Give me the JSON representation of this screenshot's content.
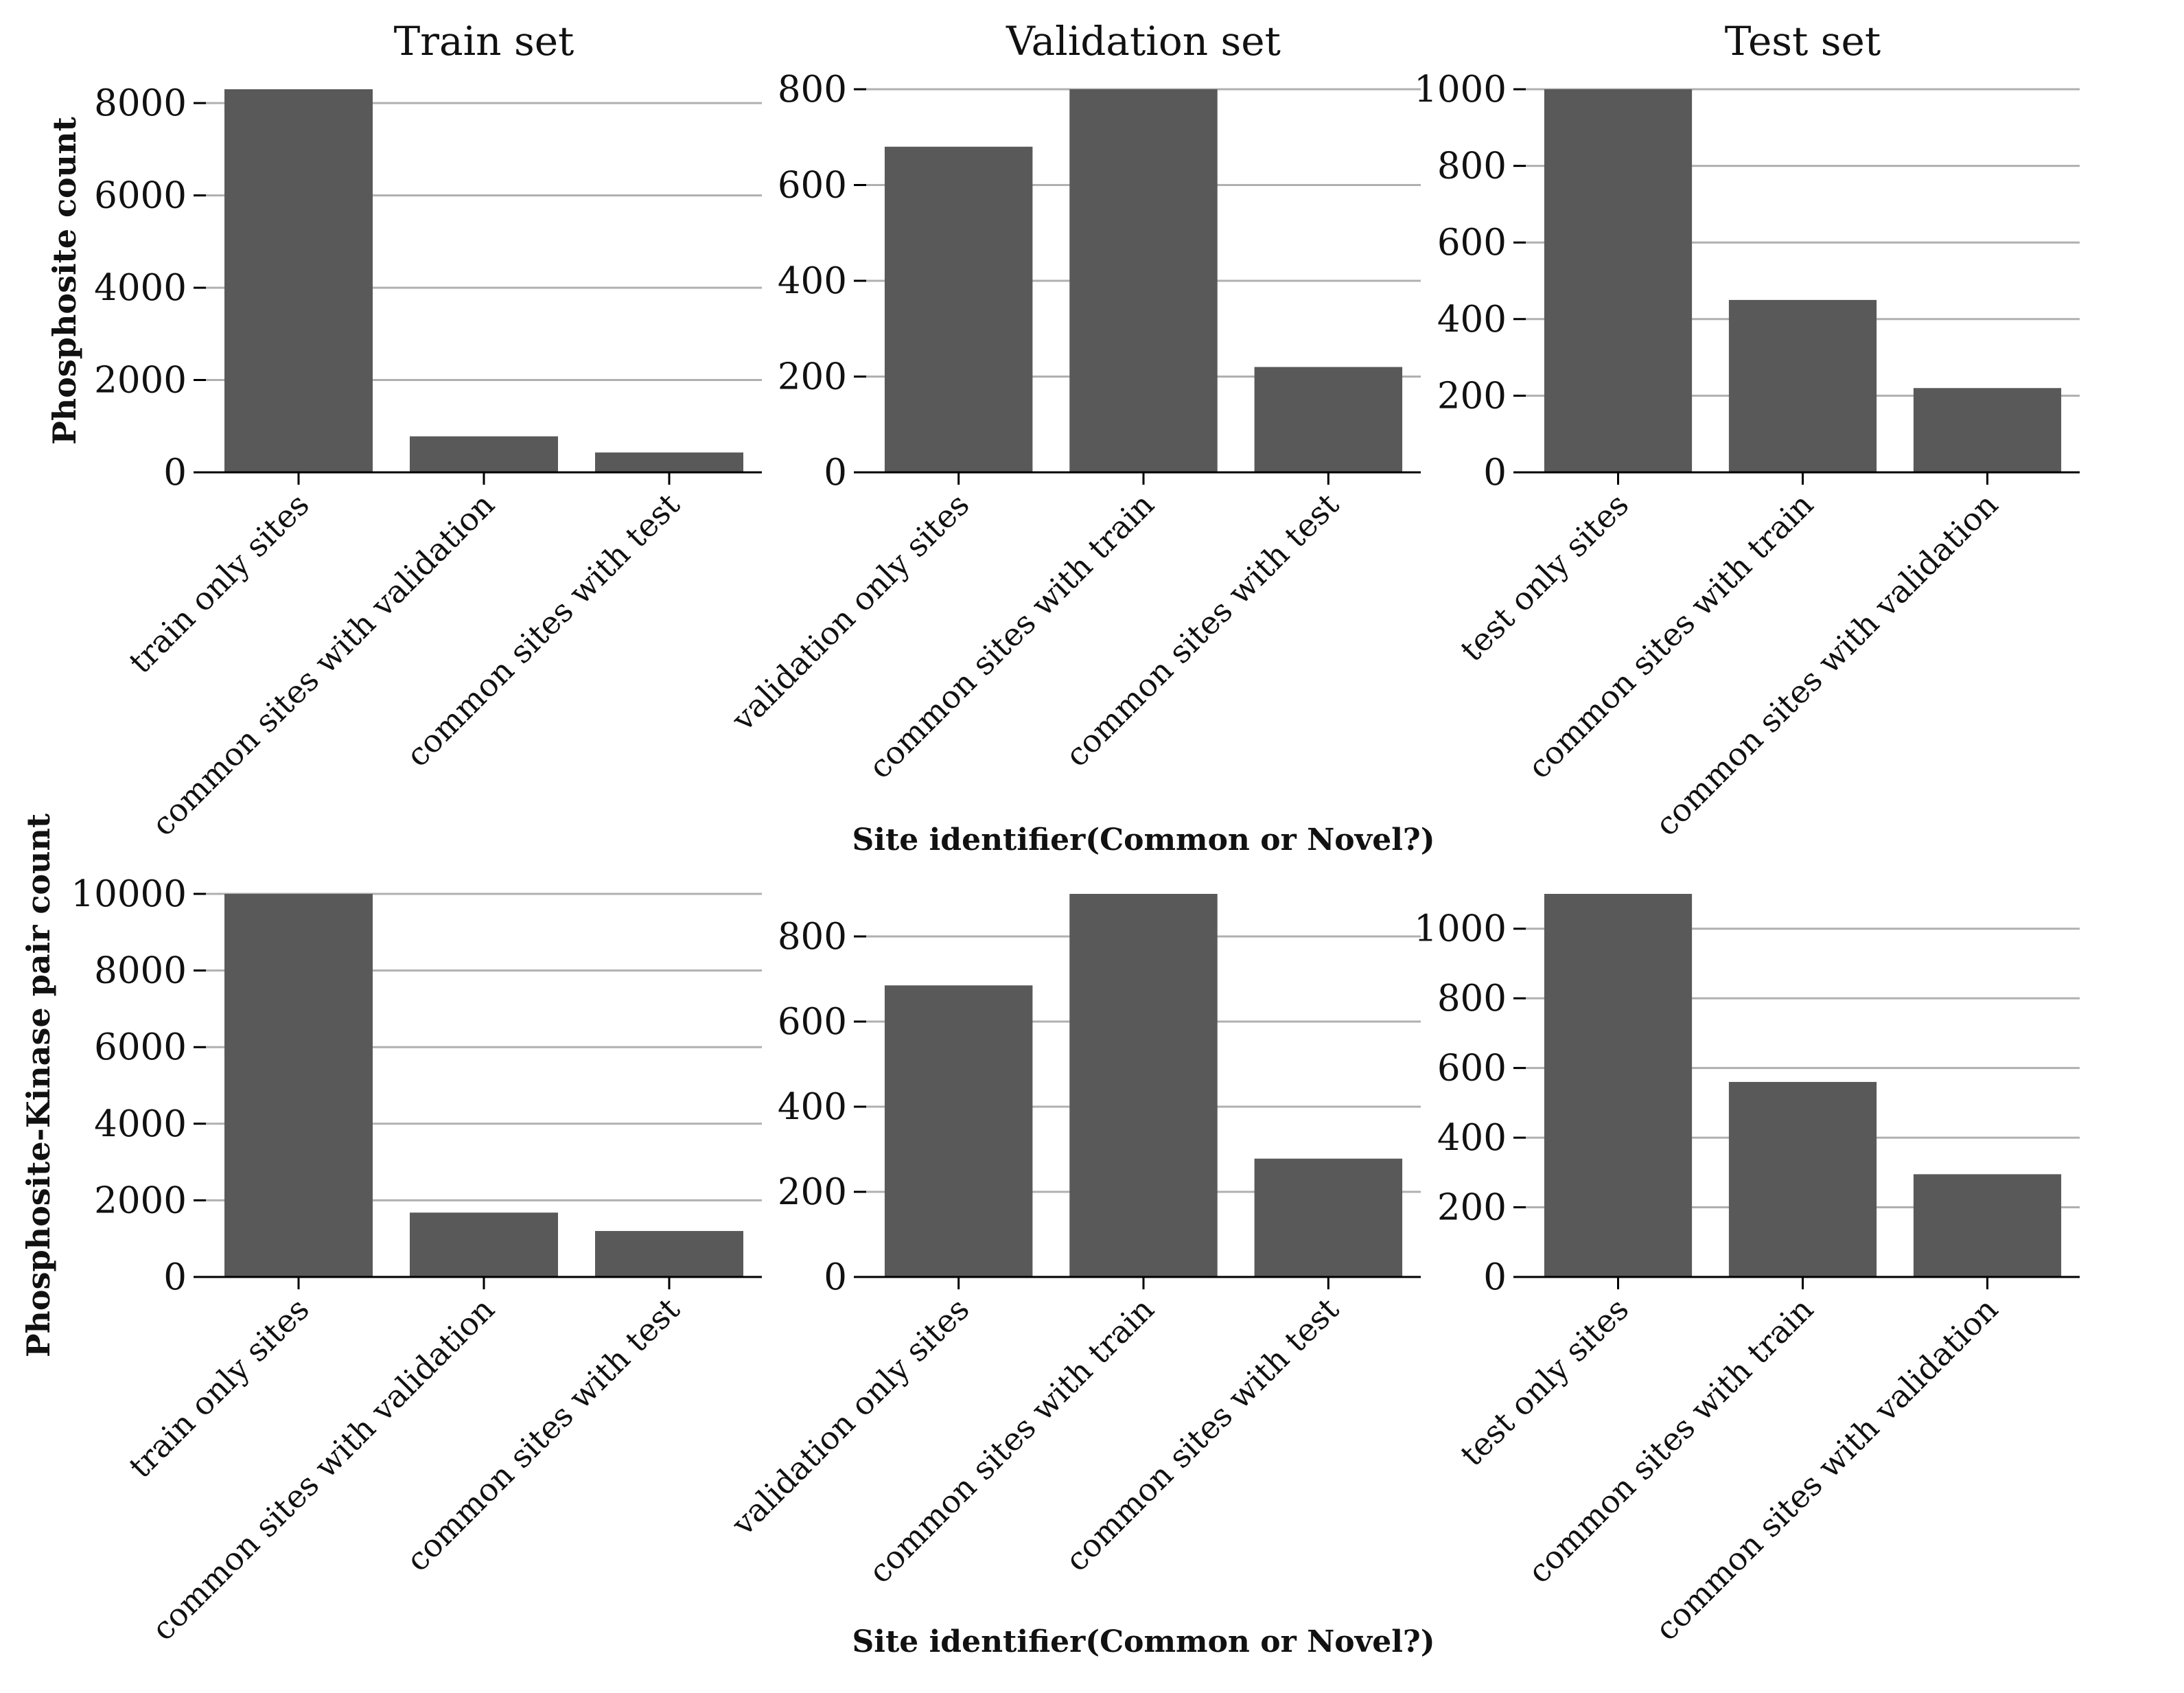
{
  "chart_data": [
    {
      "type": "bar",
      "title": "Train set",
      "ylabel": "Phosphosite count",
      "xlabel": "",
      "categories": [
        "train only sites",
        "common sites with validation",
        "common sites with test"
      ],
      "values": [
        8300,
        780,
        430
      ],
      "ylim": [
        0,
        8300
      ],
      "yticks": [
        0,
        2000,
        4000,
        6000,
        8000
      ],
      "grid": true,
      "color": "#595959"
    },
    {
      "type": "bar",
      "title": "Validation set",
      "ylabel": "",
      "xlabel": "Site identifier(Common or Novel?)",
      "categories": [
        "validation only sites",
        "common sites with train",
        "common sites with test"
      ],
      "values": [
        680,
        800,
        220
      ],
      "ylim": [
        0,
        800
      ],
      "yticks": [
        0,
        200,
        400,
        600,
        800
      ],
      "grid": true,
      "color": "#595959"
    },
    {
      "type": "bar",
      "title": "Test set",
      "ylabel": "",
      "xlabel": "",
      "categories": [
        "test only sites",
        "common sites with train",
        "common sites with validation"
      ],
      "values": [
        1000,
        450,
        220
      ],
      "ylim": [
        0,
        1000
      ],
      "yticks": [
        0,
        200,
        400,
        600,
        800,
        1000
      ],
      "grid": true,
      "color": "#595959"
    },
    {
      "type": "bar",
      "title": "",
      "ylabel": "Phosphosite-Kinase pair count",
      "xlabel": "",
      "categories": [
        "train only sites",
        "common sites with validation",
        "common sites with test"
      ],
      "values": [
        10000,
        1680,
        1200
      ],
      "ylim": [
        0,
        10000
      ],
      "yticks": [
        0,
        2000,
        4000,
        6000,
        8000,
        10000
      ],
      "grid": true,
      "color": "#595959"
    },
    {
      "type": "bar",
      "title": "",
      "ylabel": "",
      "xlabel": "Site identifier(Common or Novel?)",
      "categories": [
        "validation only sites",
        "common sites with train",
        "common sites with test"
      ],
      "values": [
        685,
        900,
        278
      ],
      "ylim": [
        0,
        900
      ],
      "yticks": [
        0,
        200,
        400,
        600,
        800
      ],
      "grid": true,
      "color": "#595959"
    },
    {
      "type": "bar",
      "title": "",
      "ylabel": "",
      "xlabel": "",
      "categories": [
        "test only sites",
        "common sites with train",
        "common sites with validation"
      ],
      "values": [
        1100,
        560,
        295
      ],
      "ylim": [
        0,
        1100
      ],
      "yticks": [
        0,
        200,
        400,
        600,
        800,
        1000
      ],
      "grid": true,
      "color": "#595959"
    }
  ]
}
